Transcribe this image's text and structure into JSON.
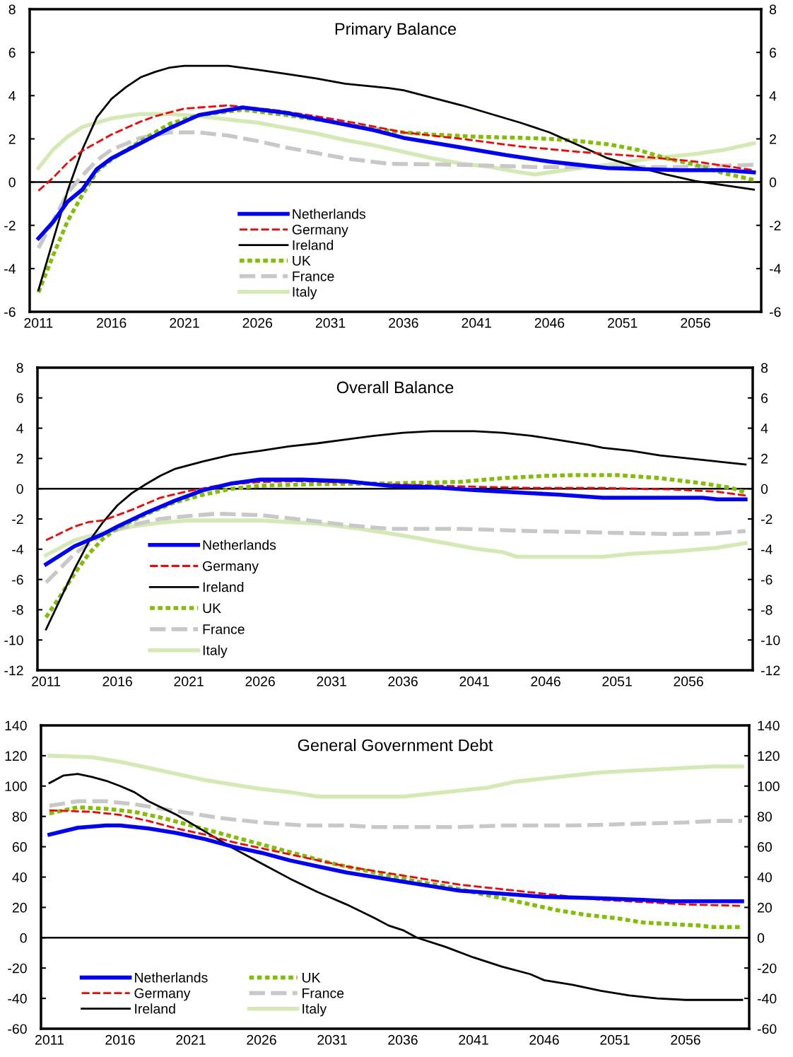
{
  "chart_data": [
    {
      "type": "line",
      "title": "Primary Balance",
      "xlim": [
        2010.4,
        2060.5
      ],
      "xticks": [
        2011,
        2016,
        2021,
        2026,
        2031,
        2036,
        2041,
        2046,
        2051,
        2056
      ],
      "ylim": [
        -6,
        8
      ],
      "yticks": [
        -6,
        -4,
        -2,
        0,
        2,
        4,
        6,
        8
      ],
      "y2lim": [
        -6,
        8
      ],
      "y2ticks": [
        -6,
        -4,
        -2,
        0,
        2,
        4,
        6,
        8
      ],
      "grid": false,
      "legend": "bottom",
      "ref_lines": [
        {
          "axis": "y",
          "value": 0
        }
      ],
      "series": [
        {
          "name": "Netherlands",
          "color": "#0000ff",
          "line_style": "solid",
          "x": [
            2011,
            2012,
            2013,
            2014,
            2015,
            2016,
            2018,
            2020,
            2022,
            2025,
            2028,
            2031,
            2034,
            2036,
            2040,
            2043,
            2046,
            2048,
            2050,
            2055,
            2058,
            2060
          ],
          "values": [
            -2.6,
            -1.85,
            -0.9,
            -0.35,
            0.6,
            1.1,
            1.8,
            2.5,
            3.1,
            3.45,
            3.2,
            2.8,
            2.4,
            2.05,
            1.6,
            1.25,
            0.95,
            0.8,
            0.65,
            0.55,
            0.55,
            0.45
          ]
        },
        {
          "name": "Germany",
          "color": "#ff0000",
          "line_style": "dashed",
          "x": [
            2011,
            2012,
            2013,
            2014,
            2016,
            2018,
            2019,
            2021,
            2024,
            2027,
            2030,
            2033,
            2036,
            2040,
            2044,
            2048,
            2052,
            2056,
            2060
          ],
          "values": [
            -0.4,
            0.2,
            0.9,
            1.45,
            2.2,
            2.8,
            3.05,
            3.4,
            3.55,
            3.35,
            3.05,
            2.7,
            2.3,
            2.0,
            1.65,
            1.4,
            1.2,
            0.95,
            0.55
          ]
        },
        {
          "name": "Ireland",
          "color": "#000000",
          "line_style": "solid",
          "x": [
            2011,
            2012,
            2013,
            2014,
            2015,
            2016,
            2017,
            2018,
            2019,
            2020,
            2021,
            2024,
            2026,
            2028,
            2030,
            2032,
            2035,
            2036,
            2038,
            2040,
            2042,
            2044,
            2046,
            2048,
            2050,
            2052,
            2054,
            2056,
            2058,
            2060
          ],
          "values": [
            -5.0,
            -2.7,
            -0.4,
            1.5,
            3.0,
            3.85,
            4.4,
            4.85,
            5.1,
            5.3,
            5.38,
            5.38,
            5.2,
            5.0,
            4.8,
            4.55,
            4.35,
            4.25,
            3.9,
            3.55,
            3.15,
            2.75,
            2.3,
            1.7,
            1.1,
            0.7,
            0.35,
            0.05,
            -0.15,
            -0.35
          ]
        },
        {
          "name": "UK",
          "color": "#80c000",
          "line_style": "dotted",
          "x": [
            2011,
            2012,
            2013,
            2014,
            2015,
            2016,
            2018,
            2020,
            2022,
            2025,
            2028,
            2031,
            2034,
            2036,
            2038,
            2041,
            2044,
            2046,
            2048,
            2050,
            2052,
            2054,
            2056,
            2058,
            2060
          ],
          "values": [
            -5.1,
            -3.4,
            -1.8,
            -0.6,
            0.5,
            1.05,
            1.9,
            2.7,
            3.1,
            3.35,
            3.1,
            2.8,
            2.45,
            2.3,
            2.2,
            2.1,
            2.05,
            2.0,
            1.9,
            1.75,
            1.5,
            1.1,
            0.8,
            0.4,
            0.1
          ]
        },
        {
          "name": "France",
          "color": "#c8c8c8",
          "line_style": "dashed",
          "x": [
            2011,
            2012,
            2013,
            2014,
            2015,
            2016,
            2018,
            2020,
            2022,
            2024,
            2026,
            2028,
            2030,
            2032,
            2035,
            2040,
            2045,
            2050,
            2055,
            2060
          ],
          "values": [
            -3.05,
            -1.8,
            -0.5,
            0.3,
            1.0,
            1.5,
            2.05,
            2.3,
            2.3,
            2.15,
            1.9,
            1.6,
            1.35,
            1.1,
            0.85,
            0.8,
            0.7,
            0.7,
            0.7,
            0.8
          ]
        },
        {
          "name": "Italy",
          "color": "#d4eab4",
          "line_style": "solid",
          "x": [
            2011,
            2012,
            2013,
            2014,
            2016,
            2018,
            2020,
            2022,
            2024,
            2026,
            2028,
            2030,
            2032,
            2034,
            2036,
            2038,
            2040,
            2042,
            2044,
            2045,
            2047,
            2050,
            2053,
            2056,
            2058,
            2060
          ],
          "values": [
            0.65,
            1.5,
            2.1,
            2.55,
            2.95,
            3.15,
            3.15,
            3.05,
            2.9,
            2.75,
            2.5,
            2.25,
            1.95,
            1.7,
            1.4,
            1.1,
            0.85,
            0.7,
            0.45,
            0.35,
            0.55,
            0.8,
            1.1,
            1.3,
            1.5,
            1.8
          ]
        }
      ]
    },
    {
      "type": "line",
      "title": "Overall Balance",
      "xlim": [
        2010.4,
        2060.5
      ],
      "xticks": [
        2011,
        2016,
        2021,
        2026,
        2031,
        2036,
        2041,
        2046,
        2051,
        2056
      ],
      "ylim": [
        -12,
        8
      ],
      "yticks": [
        -12,
        -10,
        -8,
        -6,
        -4,
        -2,
        0,
        2,
        4,
        6,
        8
      ],
      "y2lim": [
        -12,
        8
      ],
      "y2ticks": [
        -12,
        -10,
        -8,
        -6,
        -4,
        -2,
        0,
        2,
        4,
        6,
        8
      ],
      "grid": false,
      "legend": "bottom left",
      "ref_lines": [
        {
          "axis": "y",
          "value": 0
        }
      ],
      "series": [
        {
          "name": "Netherlands",
          "color": "#0000ff",
          "line_style": "solid",
          "x": [
            2011,
            2013,
            2015,
            2016,
            2018,
            2020,
            2022,
            2024,
            2026,
            2029,
            2032,
            2035,
            2038,
            2041,
            2044,
            2047,
            2050,
            2054,
            2057,
            2058,
            2060
          ],
          "values": [
            -5.0,
            -3.8,
            -3.0,
            -2.5,
            -1.6,
            -0.8,
            -0.1,
            0.35,
            0.6,
            0.6,
            0.5,
            0.2,
            0.1,
            -0.1,
            -0.25,
            -0.4,
            -0.6,
            -0.6,
            -0.6,
            -0.7,
            -0.7
          ]
        },
        {
          "name": "Germany",
          "color": "#ff0000",
          "line_style": "dashed",
          "x": [
            2011,
            2013,
            2014,
            2015,
            2017,
            2019,
            2021,
            2023,
            2026,
            2029,
            2032,
            2035,
            2040,
            2045,
            2050,
            2055,
            2058,
            2060
          ],
          "values": [
            -3.4,
            -2.5,
            -2.2,
            -2.1,
            -1.4,
            -0.6,
            -0.15,
            0.2,
            0.45,
            0.5,
            0.4,
            0.3,
            0.15,
            0.05,
            0.05,
            -0.05,
            -0.2,
            -0.45
          ]
        },
        {
          "name": "Ireland",
          "color": "#000000",
          "line_style": "solid",
          "x": [
            2011,
            2012,
            2013,
            2014,
            2015,
            2016,
            2017,
            2018,
            2019,
            2020,
            2022,
            2024,
            2026,
            2028,
            2030,
            2032,
            2034,
            2036,
            2038,
            2041,
            2043,
            2045,
            2047,
            2049,
            2050,
            2052,
            2054,
            2056,
            2058,
            2060
          ],
          "values": [
            -9.3,
            -7.3,
            -5.3,
            -3.5,
            -2.2,
            -1.1,
            -0.3,
            0.3,
            0.85,
            1.3,
            1.8,
            2.25,
            2.5,
            2.8,
            3.0,
            3.25,
            3.5,
            3.7,
            3.8,
            3.8,
            3.7,
            3.5,
            3.2,
            2.9,
            2.7,
            2.5,
            2.2,
            2.0,
            1.8,
            1.6
          ]
        },
        {
          "name": "UK",
          "color": "#80c000",
          "line_style": "dotted",
          "x": [
            2011,
            2012,
            2013,
            2014,
            2015,
            2016,
            2018,
            2020,
            2022,
            2024,
            2026,
            2030,
            2035,
            2040,
            2043,
            2046,
            2048,
            2051,
            2054,
            2057,
            2059,
            2060
          ],
          "values": [
            -8.5,
            -7.1,
            -5.6,
            -4.3,
            -3.3,
            -2.6,
            -1.7,
            -0.9,
            -0.4,
            0.0,
            0.2,
            0.3,
            0.35,
            0.45,
            0.7,
            0.85,
            0.9,
            0.9,
            0.7,
            0.35,
            0.05,
            -0.25
          ]
        },
        {
          "name": "France",
          "color": "#c8c8c8",
          "line_style": "dashed",
          "x": [
            2011,
            2013,
            2015,
            2017,
            2019,
            2021,
            2023,
            2026,
            2029,
            2032,
            2035,
            2040,
            2045,
            2050,
            2055,
            2058,
            2060
          ],
          "values": [
            -6.2,
            -4.3,
            -3.0,
            -2.4,
            -2.0,
            -1.8,
            -1.65,
            -1.75,
            -2.05,
            -2.4,
            -2.65,
            -2.65,
            -2.8,
            -2.9,
            -3.0,
            -2.95,
            -2.8
          ]
        },
        {
          "name": "Italy",
          "color": "#d4eab4",
          "line_style": "solid",
          "x": [
            2011,
            2013,
            2015,
            2017,
            2019,
            2021,
            2026,
            2030,
            2033,
            2036,
            2039,
            2041,
            2043,
            2044,
            2050,
            2052,
            2055,
            2058,
            2060
          ],
          "values": [
            -4.4,
            -3.4,
            -2.9,
            -2.5,
            -2.25,
            -2.1,
            -2.1,
            -2.3,
            -2.65,
            -3.1,
            -3.6,
            -3.95,
            -4.2,
            -4.5,
            -4.5,
            -4.3,
            -4.15,
            -3.9,
            -3.6
          ]
        }
      ]
    },
    {
      "type": "line",
      "title": "General Government Debt",
      "xlim": [
        2010.4,
        2060.5
      ],
      "xticks": [
        2011,
        2016,
        2021,
        2026,
        2031,
        2036,
        2041,
        2046,
        2051,
        2056
      ],
      "ylim": [
        -60,
        140
      ],
      "yticks": [
        -60,
        -40,
        -20,
        0,
        20,
        40,
        60,
        80,
        100,
        120,
        140
      ],
      "y2lim": [
        -60,
        140
      ],
      "y2ticks": [
        -60,
        -40,
        -20,
        0,
        20,
        40,
        60,
        80,
        100,
        120,
        140
      ],
      "grid": false,
      "legend": "bottom left",
      "ref_lines": [
        {
          "axis": "y",
          "value": 0
        }
      ],
      "series": [
        {
          "name": "Netherlands",
          "color": "#0000ff",
          "line_style": "solid",
          "x": [
            2011,
            2013,
            2015,
            2016,
            2018,
            2020,
            2022,
            2024,
            2026,
            2028,
            2030,
            2032,
            2034,
            2036,
            2038,
            2040,
            2043,
            2046,
            2050,
            2053,
            2055,
            2060
          ],
          "values": [
            68,
            72.5,
            74,
            74,
            72,
            69,
            65,
            60,
            56,
            51,
            47,
            43,
            40,
            37,
            34,
            31,
            29,
            27,
            26,
            25,
            24,
            24
          ]
        },
        {
          "name": "Germany",
          "color": "#ff0000",
          "line_style": "dashed",
          "x": [
            2011,
            2014,
            2016,
            2018,
            2020,
            2022,
            2024,
            2026,
            2028,
            2030,
            2032,
            2034,
            2036,
            2038,
            2040,
            2043,
            2046,
            2050,
            2054,
            2056,
            2060
          ],
          "values": [
            84,
            83,
            81,
            77,
            72,
            68,
            63,
            59,
            55,
            51,
            47,
            44,
            41,
            38,
            35,
            32,
            29,
            25,
            23,
            22,
            21
          ]
        },
        {
          "name": "Ireland",
          "color": "#000000",
          "line_style": "solid",
          "x": [
            2011,
            2012,
            2013,
            2014,
            2015,
            2016,
            2017,
            2018,
            2020,
            2022,
            2024,
            2026,
            2028,
            2030,
            2032,
            2034,
            2035,
            2036,
            2037,
            2039,
            2041,
            2043,
            2045,
            2046,
            2048,
            2050,
            2052,
            2054,
            2056,
            2060
          ],
          "values": [
            102,
            107,
            108,
            106,
            103.5,
            100,
            96,
            90,
            81,
            70,
            59,
            49,
            39,
            30,
            22,
            13,
            8,
            5,
            0,
            -6,
            -13,
            -19,
            -24,
            -28,
            -31,
            -35,
            -38,
            -40,
            -41,
            -41
          ]
        },
        {
          "name": "UK",
          "color": "#80c000",
          "line_style": "dotted",
          "x": [
            2011,
            2013,
            2015,
            2017,
            2019,
            2021,
            2023,
            2025,
            2027,
            2029,
            2031,
            2033,
            2035,
            2037,
            2039,
            2041,
            2043,
            2045,
            2047,
            2049,
            2051,
            2053,
            2055,
            2057,
            2058,
            2060
          ],
          "values": [
            82,
            86,
            85,
            83,
            79,
            74,
            69,
            64,
            59,
            54,
            49,
            45,
            41,
            37,
            34,
            30,
            26,
            22,
            18,
            15,
            13,
            10,
            9,
            8,
            7,
            7
          ]
        },
        {
          "name": "France",
          "color": "#c8c8c8",
          "line_style": "dashed",
          "x": [
            2011,
            2013,
            2015,
            2017,
            2019,
            2021,
            2023,
            2026,
            2029,
            2032,
            2034,
            2040,
            2043,
            2048,
            2052,
            2056,
            2058,
            2060
          ],
          "values": [
            87,
            90,
            90,
            88,
            85,
            82,
            79,
            76,
            74,
            74,
            73,
            73,
            74,
            74,
            75,
            76,
            77,
            77
          ]
        },
        {
          "name": "Italy",
          "color": "#d4eab4",
          "line_style": "solid",
          "x": [
            2011,
            2014,
            2016,
            2018,
            2020,
            2022,
            2024,
            2026,
            2028,
            2030,
            2033,
            2036,
            2038,
            2040,
            2042,
            2044,
            2046,
            2048,
            2050,
            2052,
            2054,
            2056,
            2058,
            2060
          ],
          "values": [
            120,
            119,
            116,
            112,
            108,
            104,
            101,
            98,
            96,
            93,
            93,
            93,
            95,
            97,
            99,
            103,
            105,
            107,
            109,
            110,
            111,
            112,
            113,
            113
          ]
        }
      ]
    }
  ]
}
